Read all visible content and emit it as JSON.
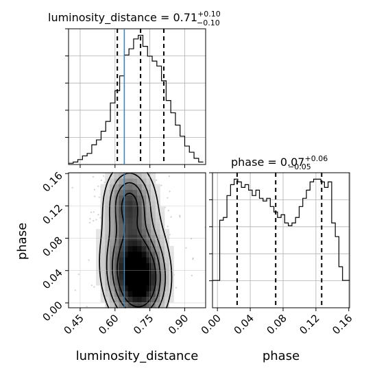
{
  "chart_data": {
    "type": "corner",
    "parameters": [
      "luminosity_distance",
      "phase"
    ],
    "truth": {
      "luminosity_distance": 0.64
    },
    "marginals": [
      {
        "parameter": "luminosity_distance",
        "title_main": "luminosity_distance = 0.71",
        "title_sup": "+0.10",
        "title_sub": "−0.10",
        "quantiles": [
          0.61,
          0.71,
          0.81
        ],
        "xlim": [
          0.4,
          0.99
        ],
        "xticks": [
          0.45,
          0.6,
          0.75,
          0.9
        ],
        "xtick_labels": [
          "0.45",
          "0.60",
          "0.75",
          "0.90"
        ],
        "bin_edges": [
          0.4,
          0.42,
          0.44,
          0.46,
          0.48,
          0.5,
          0.52,
          0.54,
          0.56,
          0.58,
          0.6,
          0.62,
          0.64,
          0.66,
          0.68,
          0.7,
          0.72,
          0.74,
          0.76,
          0.78,
          0.8,
          0.82,
          0.84,
          0.86,
          0.88,
          0.9,
          0.92,
          0.94,
          0.96,
          0.98
        ],
        "counts": [
          0.5,
          1.0,
          2.0,
          3.5,
          4.5,
          8.0,
          10.0,
          13.5,
          17.5,
          25.0,
          30.0,
          36.0,
          44.5,
          47.0,
          51.0,
          52.5,
          48.0,
          44.0,
          42.0,
          40.0,
          34.0,
          26.0,
          21.0,
          16.0,
          11.5,
          7.5,
          5.0,
          2.5,
          1.0
        ]
      },
      {
        "parameter": "phase",
        "title_main": "phase = 0.07",
        "title_sup": "+0.06",
        "title_sub": "−0.05",
        "quantiles": [
          0.024,
          0.071,
          0.127
        ],
        "xlim": [
          -0.006,
          0.161
        ],
        "xticks": [
          0.0,
          0.04,
          0.08,
          0.12,
          0.16
        ],
        "xtick_labels": [
          "0.00",
          "0.04",
          "0.08",
          "0.12",
          "0.16"
        ],
        "bin_edges": [
          -0.006,
          -0.0016,
          0.0028,
          0.0072,
          0.0116,
          0.016,
          0.0204,
          0.0248,
          0.0292,
          0.0336,
          0.038,
          0.0424,
          0.0468,
          0.0512,
          0.0556,
          0.06,
          0.0644,
          0.0688,
          0.0732,
          0.0776,
          0.082,
          0.0864,
          0.0908,
          0.0952,
          0.0996,
          0.104,
          0.1084,
          0.1128,
          0.1172,
          0.1216,
          0.126,
          0.1304,
          0.1348,
          0.1392,
          0.1436,
          0.148,
          0.1524,
          0.161
        ],
        "counts": [
          10,
          10,
          32,
          33,
          41,
          45,
          47,
          46,
          44,
          45,
          43,
          41,
          43,
          40,
          39,
          40,
          37,
          35,
          33,
          34,
          31,
          30,
          31,
          33,
          37,
          40,
          43,
          46,
          47,
          47,
          46,
          44,
          46,
          31,
          26,
          15,
          10
        ]
      }
    ],
    "joint": {
      "x_parameter": "luminosity_distance",
      "y_parameter": "phase",
      "xlim": [
        0.4,
        0.99
      ],
      "ylim": [
        -0.006,
        0.161
      ],
      "xticks": [
        0.45,
        0.6,
        0.75,
        0.9
      ],
      "xtick_labels": [
        "0.45",
        "0.60",
        "0.75",
        "0.90"
      ],
      "yticks": [
        0.0,
        0.04,
        0.08,
        0.12,
        0.16
      ],
      "ytick_labels": [
        "0.00",
        "0.04",
        "0.08",
        "0.12",
        "0.16"
      ],
      "density_peaks": [
        {
          "x": 0.71,
          "y": 0.025,
          "level": 1.0
        },
        {
          "x": 0.66,
          "y": 0.125,
          "level": 0.75
        },
        {
          "x": 0.67,
          "y": 0.05,
          "level": 0.7
        }
      ]
    },
    "xlabel_left": "luminosity_distance",
    "xlabel_right": "phase",
    "ylabel": "phase",
    "grid": true,
    "colors": {
      "line": "#000000",
      "truth": "#4682b4",
      "grid": "#b0b0b0"
    }
  }
}
